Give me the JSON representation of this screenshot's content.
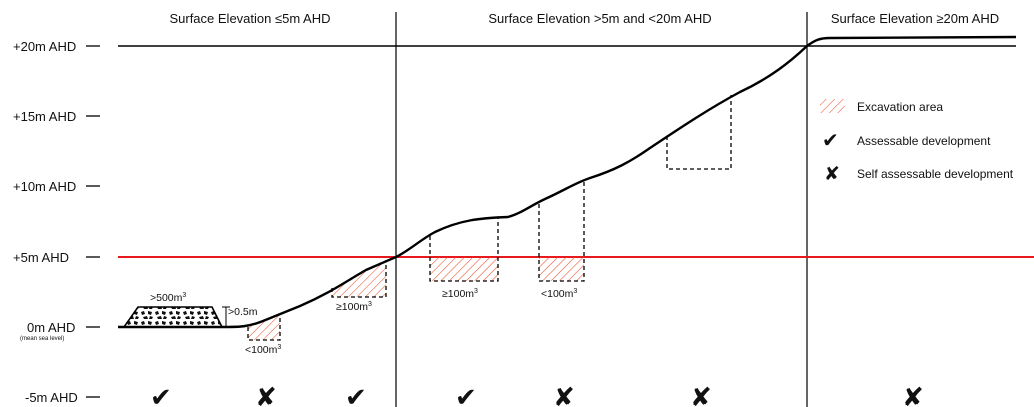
{
  "colors": {
    "line": "#000000",
    "reference_line": "#e8191c",
    "hatch": "#e8502a",
    "background": "#ffffff"
  },
  "zones": [
    {
      "title": "Surface Elevation ≤5m AHD"
    },
    {
      "title": "Surface Elevation >5m and <20m AHD"
    },
    {
      "title": "Surface  Elevation ≥20m AHD"
    }
  ],
  "axis": {
    "ticks": [
      {
        "label": "+20m AHD"
      },
      {
        "label": "+15m AHD"
      },
      {
        "label": "+10m AHD"
      },
      {
        "label": "+5m AHD"
      },
      {
        "label": "0m AHD",
        "sub": "(mean sea level)"
      },
      {
        "label": "-5m AHD"
      }
    ]
  },
  "legend": {
    "items": [
      {
        "icon": "hatch-swatch-icon",
        "label": "Excavation area"
      },
      {
        "icon": "check-icon",
        "label": "Assessable development"
      },
      {
        "icon": "cross-icon",
        "label": "Self assessable development"
      }
    ]
  },
  "annotations": {
    "fill_volume": {
      "text": ">500m",
      "sup": "3"
    },
    "fill_height": {
      "text": ">0.5m"
    },
    "excavations": [
      {
        "text": "<100m",
        "sup": "3"
      },
      {
        "text": "≥100m",
        "sup": "3"
      },
      {
        "text": "≥100m",
        "sup": "3"
      },
      {
        "text": "<100m",
        "sup": "3"
      }
    ]
  },
  "assessment_marks": [
    {
      "mark": "✔",
      "icon": "check-icon"
    },
    {
      "mark": "✘",
      "icon": "cross-icon"
    },
    {
      "mark": "✔",
      "icon": "check-icon"
    },
    {
      "mark": "✔",
      "icon": "check-icon"
    },
    {
      "mark": "✘",
      "icon": "cross-icon"
    },
    {
      "mark": "✘",
      "icon": "cross-icon"
    },
    {
      "mark": "✘",
      "icon": "cross-icon"
    }
  ]
}
